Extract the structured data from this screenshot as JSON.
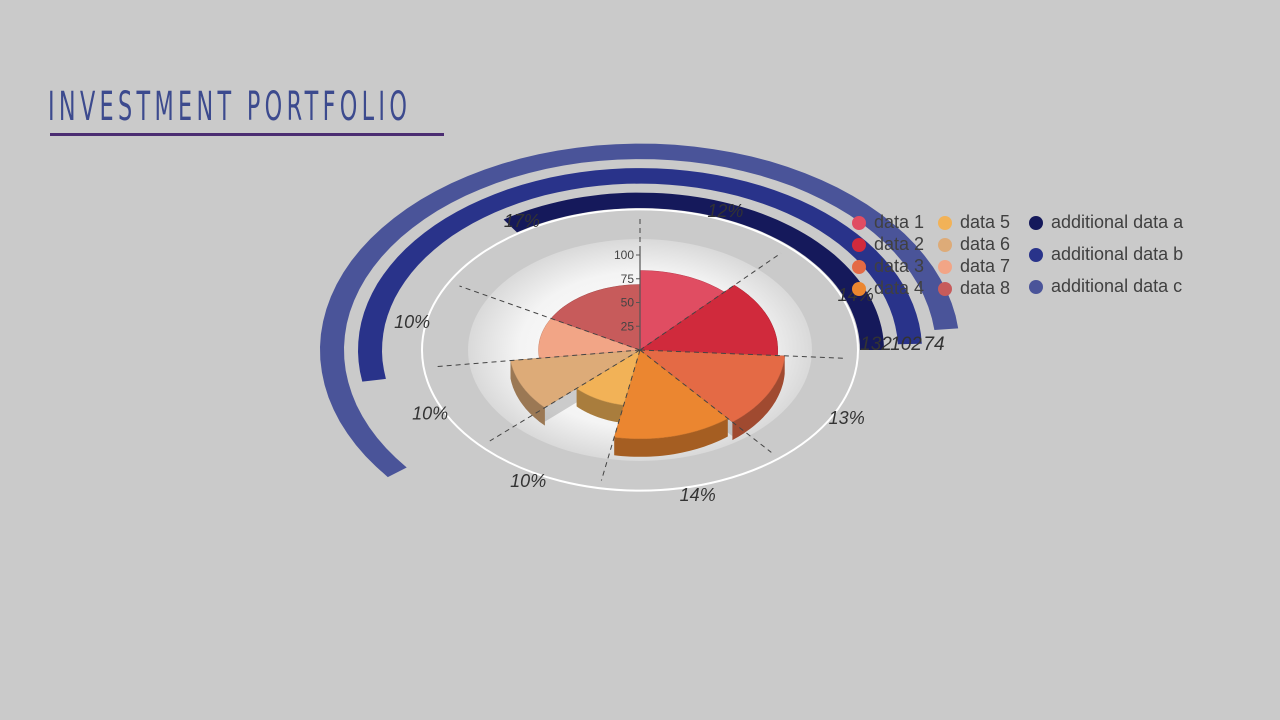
{
  "title": "INVESTMENT PORTFOLIO",
  "chart_data": {
    "type": "pie",
    "slices": [
      {
        "name": "data 1",
        "label": "12%",
        "value": 12,
        "radius": 85,
        "color": "#e04d62"
      },
      {
        "name": "data 2",
        "label": "14%",
        "value": 14,
        "radius": 95,
        "color": "#d02a3c"
      },
      {
        "name": "data 3",
        "label": "13%",
        "value": 13,
        "radius": 100,
        "color": "#e46a45"
      },
      {
        "name": "data 4",
        "label": "14%",
        "value": 14,
        "radius": 95,
        "color": "#eb8630"
      },
      {
        "name": "data 5",
        "label": "10%",
        "value": 10,
        "radius": 60,
        "color": "#f2b257"
      },
      {
        "name": "data 6",
        "label": "10%",
        "value": 10,
        "radius": 90,
        "color": "#ddab78"
      },
      {
        "name": "data 7",
        "label": "10%",
        "value": 10,
        "radius": 70,
        "color": "#f2a586"
      },
      {
        "name": "data 8",
        "label": "17%",
        "value": 17,
        "radius": 70,
        "color": "#c75b5b"
      }
    ],
    "radial_axis": {
      "ticks": [
        25,
        50,
        75,
        100
      ],
      "max": 100
    },
    "additional_series": [
      {
        "name": "additional data a",
        "value": 132,
        "label": "132",
        "color": "#15195b"
      },
      {
        "name": "additional data b",
        "value": 102,
        "label": "102",
        "color": "#29338a"
      },
      {
        "name": "additional data c",
        "value": 74,
        "label": "74",
        "color": "#4a5499"
      }
    ],
    "legend_position": "top-right"
  }
}
